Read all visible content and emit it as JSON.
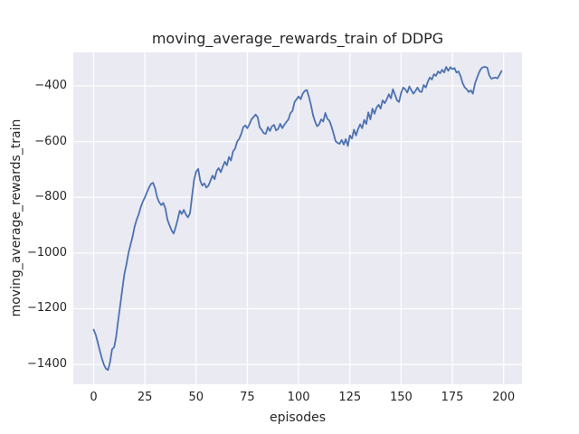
{
  "chart_data": {
    "type": "line",
    "title": "moving_average_rewards_train of DDPG",
    "xlabel": "episodes",
    "ylabel": "moving_average_rewards_train",
    "grid": true,
    "legend": null,
    "xlim": [
      -9.93,
      208.96
    ],
    "ylim": [
      -1471,
      -280
    ],
    "x_ticks": {
      "values": [
        0,
        25,
        50,
        75,
        100,
        125,
        150,
        175,
        200
      ],
      "labels": [
        "0",
        "25",
        "50",
        "75",
        "100",
        "125",
        "150",
        "175",
        "200"
      ]
    },
    "y_ticks": {
      "values": [
        -400,
        -600,
        -800,
        -1000,
        -1200,
        -1400
      ],
      "labels": [
        "−400",
        "−600",
        "−800",
        "−1000",
        "−1200",
        "−1400"
      ]
    },
    "series": [
      {
        "name": "moving_average_rewards_train",
        "x_start": 0,
        "x_step": 1,
        "values": [
          -1275,
          -1293,
          -1320,
          -1350,
          -1378,
          -1400,
          -1415,
          -1420,
          -1392,
          -1345,
          -1338,
          -1300,
          -1240,
          -1185,
          -1130,
          -1075,
          -1040,
          -1000,
          -970,
          -940,
          -905,
          -880,
          -860,
          -835,
          -815,
          -800,
          -782,
          -765,
          -752,
          -748,
          -768,
          -800,
          -818,
          -828,
          -820,
          -840,
          -880,
          -900,
          -918,
          -930,
          -908,
          -880,
          -848,
          -860,
          -845,
          -862,
          -872,
          -858,
          -795,
          -738,
          -708,
          -698,
          -740,
          -758,
          -750,
          -765,
          -758,
          -740,
          -722,
          -735,
          -705,
          -695,
          -710,
          -690,
          -672,
          -685,
          -655,
          -668,
          -635,
          -625,
          -600,
          -590,
          -572,
          -548,
          -542,
          -552,
          -538,
          -520,
          -512,
          -503,
          -512,
          -548,
          -558,
          -570,
          -572,
          -548,
          -562,
          -545,
          -540,
          -560,
          -555,
          -536,
          -552,
          -540,
          -530,
          -520,
          -498,
          -490,
          -458,
          -448,
          -438,
          -448,
          -428,
          -418,
          -415,
          -438,
          -468,
          -505,
          -528,
          -545,
          -538,
          -520,
          -528,
          -497,
          -518,
          -525,
          -545,
          -570,
          -598,
          -605,
          -608,
          -594,
          -611,
          -591,
          -616,
          -578,
          -589,
          -557,
          -578,
          -555,
          -538,
          -552,
          -522,
          -537,
          -495,
          -520,
          -482,
          -500,
          -478,
          -468,
          -482,
          -452,
          -462,
          -448,
          -430,
          -445,
          -412,
          -432,
          -452,
          -458,
          -425,
          -406,
          -412,
          -424,
          -402,
          -416,
          -428,
          -418,
          -406,
          -420,
          -422,
          -397,
          -406,
          -385,
          -370,
          -377,
          -358,
          -364,
          -348,
          -355,
          -342,
          -352,
          -332,
          -346,
          -333,
          -340,
          -336,
          -352,
          -348,
          -365,
          -390,
          -405,
          -412,
          -422,
          -416,
          -428,
          -392,
          -372,
          -352,
          -338,
          -333,
          -332,
          -335,
          -362,
          -374,
          -372,
          -370,
          -373,
          -360,
          -347
        ]
      }
    ],
    "colors": {
      "line": "#4c72b0",
      "plot_background": "#eaeaf2",
      "grid": "#ffffff",
      "figure_background": "#ffffff",
      "text": "#262626"
    }
  }
}
